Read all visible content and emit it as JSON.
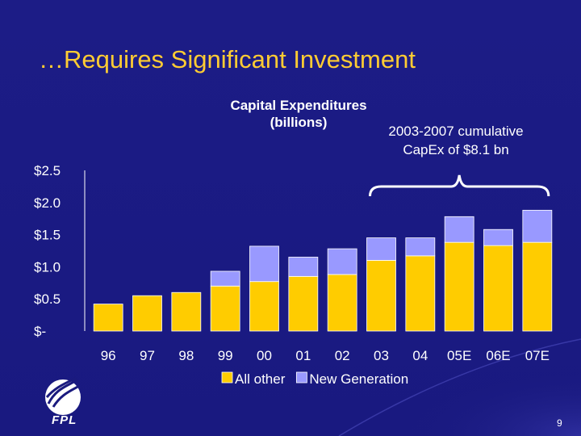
{
  "slide": {
    "title": "…Requires Significant Investment",
    "logo_text": "FPL",
    "page_number": "9"
  },
  "colors": {
    "background": "#1a1a7e",
    "title": "#ffcc33",
    "all_other": "#ffcc00",
    "new_generation": "#9999ff",
    "text": "#ffffff"
  },
  "chart_data": {
    "type": "bar",
    "stacked": true,
    "title_lines": [
      "Capital Expenditures",
      "(billions)"
    ],
    "categories": [
      "96",
      "97",
      "98",
      "99",
      "00",
      "01",
      "02",
      "03",
      "04",
      "05E",
      "06E",
      "07E"
    ],
    "series": [
      {
        "name": "All other",
        "color": "#ffcc00",
        "values": [
          0.42,
          0.55,
          0.6,
          0.7,
          0.77,
          0.85,
          0.88,
          1.1,
          1.17,
          1.38,
          1.33,
          1.38
        ]
      },
      {
        "name": "New Generation",
        "color": "#9999ff",
        "values": [
          0.0,
          0.0,
          0.0,
          0.23,
          0.55,
          0.3,
          0.4,
          0.35,
          0.28,
          0.4,
          0.25,
          0.5
        ]
      }
    ],
    "y_tick_labels": [
      "$-",
      "$0.5",
      "$1.0",
      "$1.5",
      "$2.0",
      "$2.5"
    ],
    "y_tick_values": [
      0,
      0.5,
      1.0,
      1.5,
      2.0,
      2.5
    ],
    "ylim": [
      0,
      2.5
    ],
    "grid": false,
    "legend_position": "bottom",
    "annotation": {
      "line1": "2003-2007 cumulative",
      "line2": "CapEx of $8.1 bn",
      "span_categories": [
        "03",
        "07E"
      ]
    }
  }
}
